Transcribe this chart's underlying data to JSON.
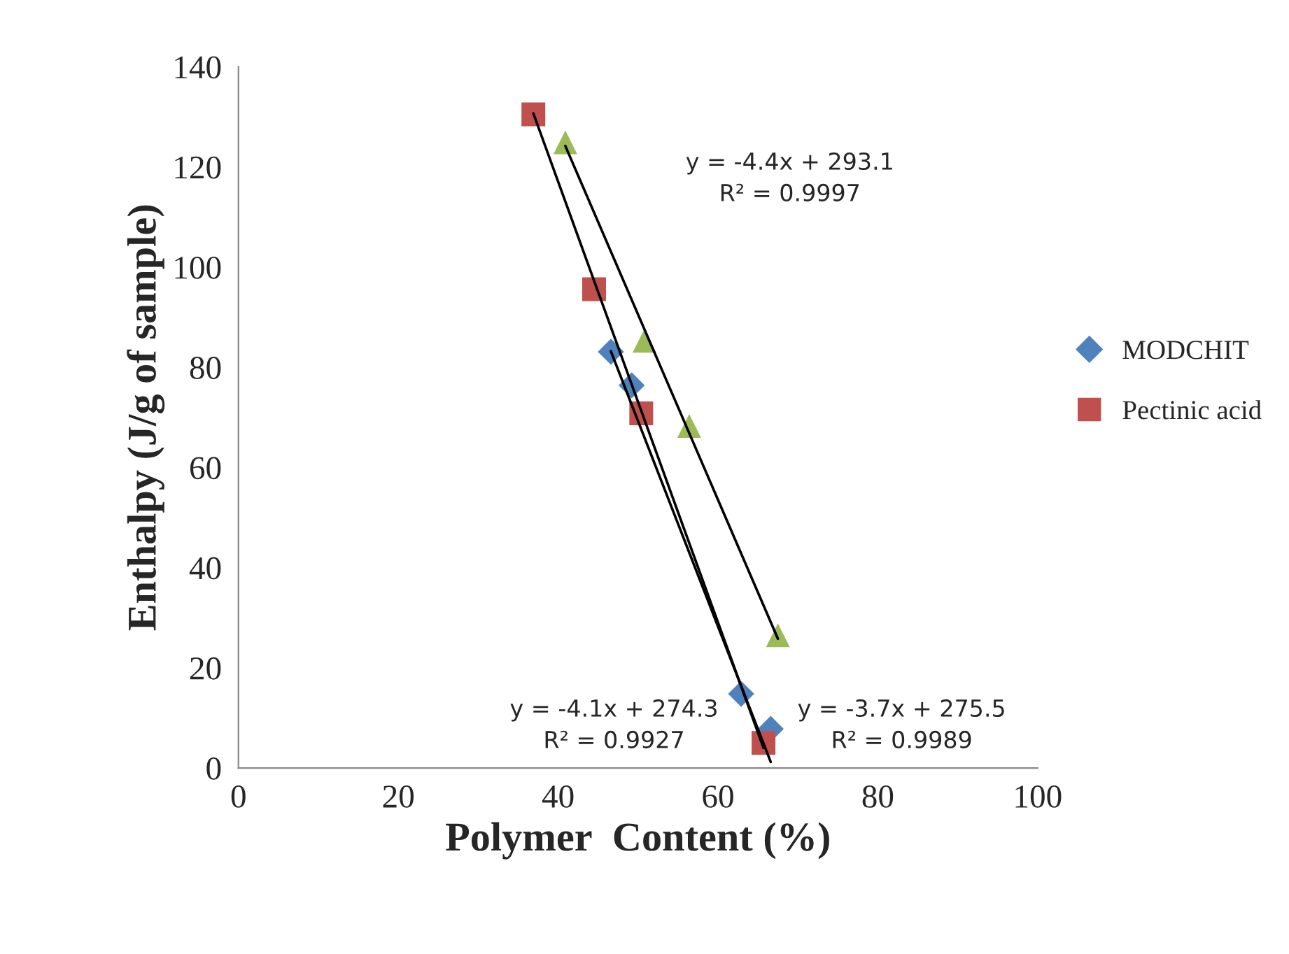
{
  "chart_data": {
    "type": "scatter",
    "xlabel": "Polymer  Content (%)",
    "ylabel": "Enthalpy (J/g of sample)",
    "xlim": [
      0,
      100
    ],
    "xticks": [
      0,
      20,
      40,
      60,
      80,
      100
    ],
    "ylim": [
      0,
      140
    ],
    "yticks": [
      0,
      20,
      40,
      60,
      80,
      100,
      120,
      140
    ],
    "grid": false,
    "legend": "right",
    "series": [
      {
        "name": "MODCHIT",
        "color": "#4f81bd",
        "marker": "diamond",
        "x": [
          46.6,
          49.2,
          62.9,
          66.6
        ],
        "values": [
          83.1,
          76.4,
          14.8,
          7.8
        ]
      },
      {
        "name": "Pectinic acid",
        "color": "#c0504d",
        "marker": "square",
        "x": [
          36.9,
          44.5,
          50.4,
          65.7
        ],
        "values": [
          130.5,
          95.6,
          70.8,
          5.0
        ]
      },
      {
        "color": "#9bbb59",
        "marker": "triangle",
        "x": [
          40.9,
          50.8,
          56.4,
          67.5
        ],
        "values": [
          124.9,
          85.3,
          68.3,
          26.5
        ]
      },
      {
        "type": "line",
        "color": "#000000",
        "marker": "none",
        "x": [
          46.6,
          66.6
        ],
        "values": [
          83.2,
          1.2
        ]
      },
      {
        "type": "line",
        "color": "#000000",
        "marker": "none",
        "x": [
          36.9,
          65.7
        ],
        "values": [
          130.7,
          4.0
        ]
      },
      {
        "type": "line",
        "color": "#000000",
        "marker": "none",
        "x": [
          40.9,
          67.5
        ],
        "values": [
          124.2,
          25.8
        ]
      }
    ],
    "annotations": [
      "y = -4.4x + 293.1\nR² = 0.9997",
      "y = -4.1x + 274.3\nR² = 0.9927",
      "y = -3.7x + 275.5\nR² = 0.9989"
    ]
  }
}
